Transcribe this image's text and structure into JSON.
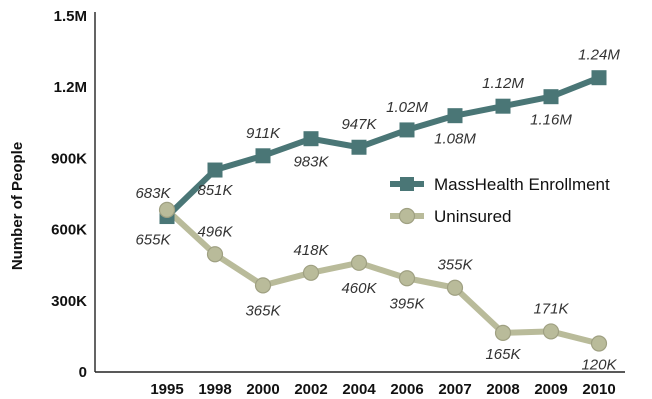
{
  "chart_data": {
    "type": "line",
    "title": "",
    "xlabel": "",
    "ylabel": "Number of People",
    "categories": [
      "1995",
      "1998",
      "2000",
      "2002",
      "2004",
      "2006",
      "2007",
      "2008",
      "2009",
      "2010"
    ],
    "ylim": [
      0,
      1500000
    ],
    "yticks": [
      0,
      300000,
      600000,
      900000,
      1200000,
      1500000
    ],
    "ytick_labels": [
      "0",
      "300K",
      "600K",
      "900K",
      "1.2M",
      "1.5M"
    ],
    "grid": false,
    "legend_position": "right",
    "series": [
      {
        "name": "MassHealth Enrollment",
        "color": "#4a7676",
        "marker": "square",
        "values": [
          655000,
          851000,
          911000,
          983000,
          947000,
          1020000,
          1080000,
          1120000,
          1160000,
          1240000
        ],
        "labels": [
          "655K",
          "851K",
          "911K",
          "983K",
          "947K",
          "1.02M",
          "1.08M",
          "1.12M",
          "1.16M",
          "1.24M"
        ]
      },
      {
        "name": "Uninsured",
        "color": "#b9bb9a",
        "marker": "circle",
        "values": [
          683000,
          496000,
          365000,
          418000,
          460000,
          395000,
          355000,
          165000,
          171000,
          120000
        ],
        "labels": [
          "683K",
          "496K",
          "365K",
          "418K",
          "460K",
          "395K",
          "355K",
          "165K",
          "171K",
          "120K"
        ]
      }
    ]
  }
}
